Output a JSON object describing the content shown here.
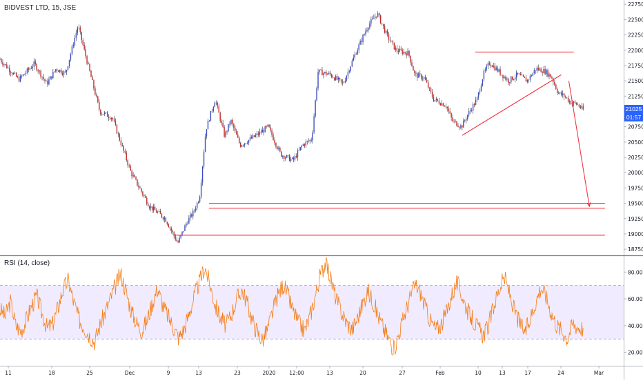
{
  "header": {
    "symbol": "BIDVEST LTD, 15, JSE",
    "indicator": "RSI (14, close)"
  },
  "badges": {
    "last_price": "21025",
    "countdown": "01:57"
  },
  "chart_data": [
    {
      "type": "candlestick",
      "title": "BIDVEST LTD, 15, JSE",
      "y_ticks": [
        18750,
        19000,
        19250,
        19500,
        19750,
        20000,
        20250,
        20500,
        20750,
        21000,
        21250,
        21500,
        21750,
        22000,
        22250,
        22500,
        22750
      ],
      "ylim": [
        18650,
        22820
      ],
      "x_ticks": [
        "11",
        "18",
        "25",
        "Dec",
        "9",
        "13",
        "23",
        "2020",
        "12:00",
        "13",
        "20",
        "27",
        "Feb",
        "10",
        "13",
        "17",
        "24",
        "Mar"
      ],
      "path": [
        [
          0,
          21850
        ],
        [
          0.03,
          21520
        ],
        [
          0.055,
          21780
        ],
        [
          0.075,
          21450
        ],
        [
          0.09,
          21700
        ],
        [
          0.105,
          21620
        ],
        [
          0.125,
          22400
        ],
        [
          0.14,
          21800
        ],
        [
          0.16,
          21000
        ],
        [
          0.18,
          20900
        ],
        [
          0.21,
          20000
        ],
        [
          0.24,
          19450
        ],
        [
          0.265,
          19250
        ],
        [
          0.285,
          18850
        ],
        [
          0.3,
          19200
        ],
        [
          0.31,
          19350
        ],
        [
          0.32,
          19600
        ],
        [
          0.33,
          20700
        ],
        [
          0.345,
          21200
        ],
        [
          0.36,
          20600
        ],
        [
          0.37,
          20850
        ],
        [
          0.385,
          20450
        ],
        [
          0.41,
          20600
        ],
        [
          0.43,
          20750
        ],
        [
          0.45,
          20300
        ],
        [
          0.47,
          20200
        ],
        [
          0.485,
          20450
        ],
        [
          0.5,
          20550
        ],
        [
          0.51,
          21650
        ],
        [
          0.53,
          21600
        ],
        [
          0.55,
          21450
        ],
        [
          0.57,
          21950
        ],
        [
          0.59,
          22400
        ],
        [
          0.605,
          22600
        ],
        [
          0.62,
          22250
        ],
        [
          0.635,
          22000
        ],
        [
          0.655,
          21950
        ],
        [
          0.665,
          21600
        ],
        [
          0.68,
          21550
        ],
        [
          0.695,
          21200
        ],
        [
          0.715,
          21100
        ],
        [
          0.725,
          20850
        ],
        [
          0.74,
          20750
        ],
        [
          0.75,
          20950
        ],
        [
          0.765,
          21200
        ],
        [
          0.775,
          21600
        ],
        [
          0.785,
          21800
        ],
        [
          0.8,
          21650
        ],
        [
          0.815,
          21500
        ],
        [
          0.83,
          21600
        ],
        [
          0.845,
          21500
        ],
        [
          0.86,
          21700
        ],
        [
          0.875,
          21650
        ],
        [
          0.885,
          21550
        ],
        [
          0.895,
          21300
        ],
        [
          0.905,
          21250
        ],
        [
          0.915,
          21150
        ],
        [
          0.925,
          21120
        ],
        [
          0.935,
          21025
        ]
      ],
      "annotations": {
        "resistance": {
          "price": 21970,
          "from": 0.762,
          "to": 0.92
        },
        "rising_trendline": {
          "from": [
            0.741,
            20610
          ],
          "to": [
            0.9,
            21600
          ]
        },
        "support_lines": [
          {
            "price": 19500,
            "from": 0.335,
            "to": 0.97
          },
          {
            "price": 19420,
            "from": 0.335,
            "to": 0.97
          },
          {
            "price": 18980,
            "from": 0.28,
            "to": 0.97
          }
        ],
        "projection_arrow": {
          "from": [
            0.912,
            21500
          ],
          "to": [
            0.945,
            19450
          ]
        }
      }
    },
    {
      "type": "line",
      "title": "RSI (14, close)",
      "series": [
        {
          "values": [
            52,
            47,
            58,
            40,
            36,
            44,
            55,
            62,
            49,
            38,
            41,
            53,
            67,
            74,
            58,
            45,
            39,
            33,
            28,
            40,
            50,
            60,
            70,
            79,
            65,
            51,
            42,
            36,
            44,
            57,
            68,
            55,
            47,
            39,
            31,
            37,
            49,
            62,
            73,
            84,
            70,
            55,
            46,
            40,
            48,
            59,
            67,
            58,
            44,
            35,
            29,
            38,
            52,
            64,
            71,
            60,
            49,
            41,
            36,
            47,
            62,
            78,
            88,
            74,
            60,
            50,
            42,
            37,
            45,
            56,
            66,
            58,
            47,
            38,
            30,
            22,
            35,
            48,
            60,
            71,
            65,
            53,
            43,
            37,
            41,
            50,
            63,
            72,
            62,
            51,
            44,
            38,
            33,
            40,
            55,
            67,
            76,
            64,
            50,
            41,
            35,
            46,
            58,
            69,
            61,
            49,
            40,
            36,
            30,
            42,
            39,
            38
          ]
        }
      ],
      "y_ticks": [
        20,
        40,
        60,
        80
      ],
      "ylim": [
        10,
        92
      ],
      "overbought": 70,
      "oversold": 30
    }
  ]
}
